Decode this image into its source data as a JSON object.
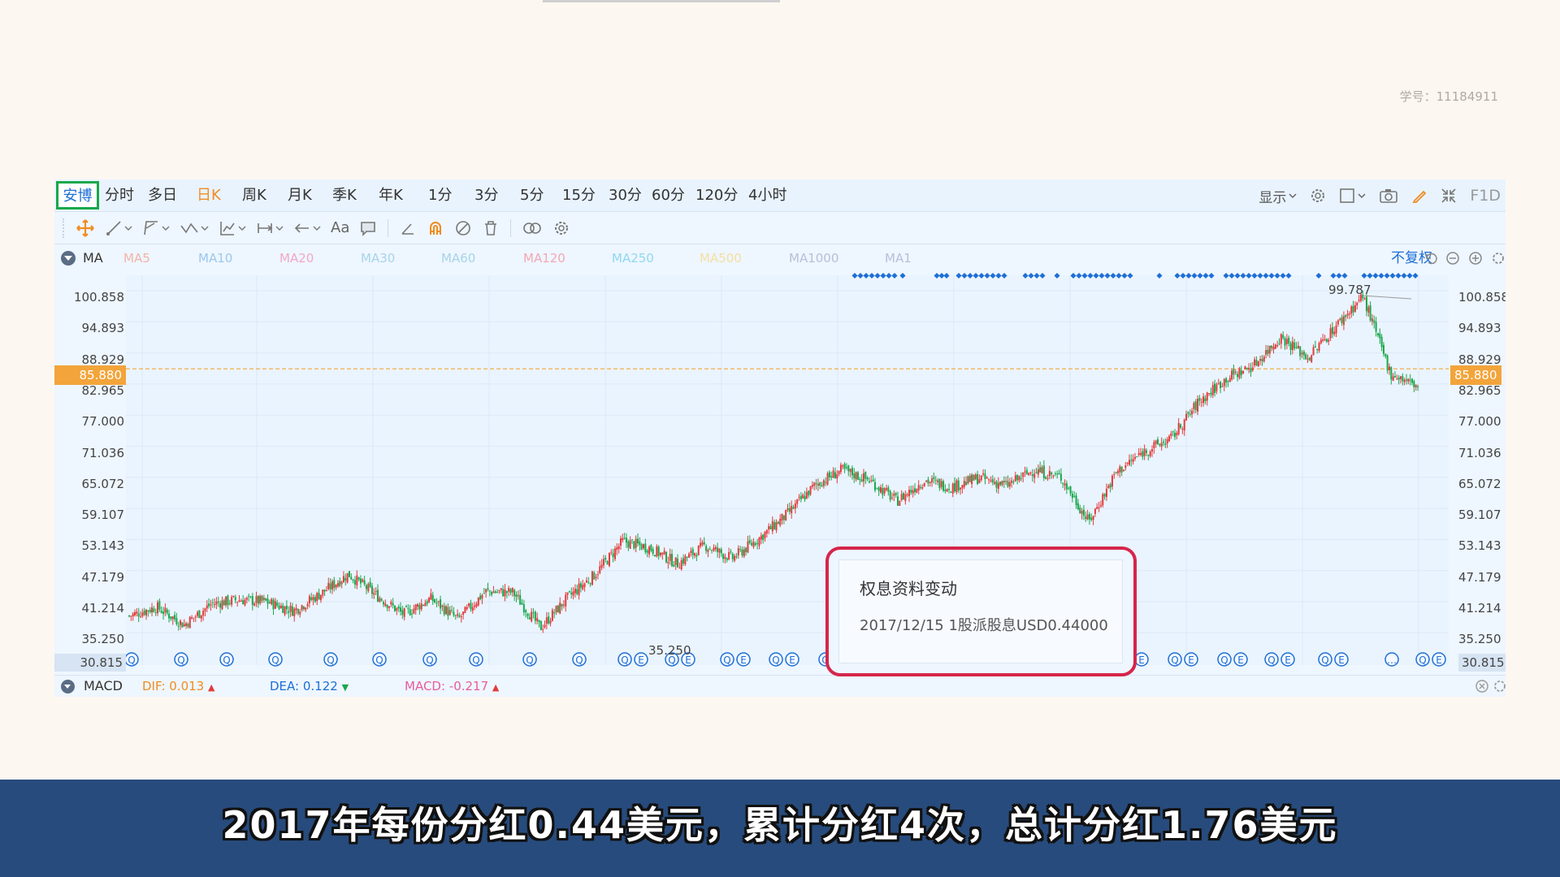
{
  "student_id": "学号：11184911",
  "stock_tab": "安博",
  "periods": [
    "分时",
    "多日",
    "日K",
    "周K",
    "月K",
    "季K",
    "年K",
    "1分",
    "3分",
    "5分",
    "15分",
    "30分",
    "60分",
    "120分",
    "4小时"
  ],
  "active_period": "日K",
  "right_tools": {
    "display": "显示",
    "fid": "F1D"
  },
  "draw_tools": {
    "text_tool": "Aa"
  },
  "ma": {
    "title": "MA",
    "items": [
      {
        "label": "MA5",
        "color": "#f3b3a7"
      },
      {
        "label": "MA10",
        "color": "#9cc7ea"
      },
      {
        "label": "MA20",
        "color": "#f2a8c4"
      },
      {
        "label": "MA30",
        "color": "#a7d4e8"
      },
      {
        "label": "MA60",
        "color": "#a7d4e8"
      },
      {
        "label": "MA120",
        "color": "#f2a8b4"
      },
      {
        "label": "MA250",
        "color": "#8fd8f0"
      },
      {
        "label": "MA500",
        "color": "#f4dfa0"
      },
      {
        "label": "MA1000",
        "color": "#b8bfd8"
      },
      {
        "label": "MA1",
        "color": "#b8bfd8"
      }
    ],
    "adjust": "不复权"
  },
  "price_axis": [
    "100.858",
    "94.893",
    "88.929",
    "82.965",
    "77.000",
    "71.036",
    "65.072",
    "59.107",
    "53.143",
    "47.179",
    "41.214",
    "35.250",
    "30.815"
  ],
  "current_price": "85.880",
  "annotations": {
    "high": "99.787",
    "low": "35.250"
  },
  "macd": {
    "title": "MACD",
    "dif": "DIF: 0.013",
    "dea": "DEA: 0.122",
    "macd": "MACD: -0.217",
    "colors": {
      "dif": "#f08c22",
      "dea": "#1d6fd6",
      "macd": "#e85c9a"
    }
  },
  "popup": {
    "title": "权息资料变动",
    "body": "2017/12/15  1股派股息USD0.44000"
  },
  "subtitle": "2017年每份分红0.44美元，累计分红4次，总计分红1.76美元",
  "chart_data": {
    "type": "candlestick",
    "y_ticks": [
      100.858,
      94.893,
      88.929,
      82.965,
      77.0,
      71.036,
      65.072,
      59.107,
      53.143,
      47.179,
      41.214,
      35.25,
      30.815
    ],
    "current_price": 85.88,
    "high_marker": 99.787,
    "low_marker": 35.25,
    "trend_close_path": [
      38.5,
      40.2,
      36.8,
      40.8,
      41.6,
      41.2,
      39.5,
      42.8,
      46.5,
      42.5,
      38.8,
      41.8,
      37.8,
      43.2,
      43.0,
      36.2,
      42.0,
      46.5,
      52.8,
      51.5,
      48.5,
      52.0,
      49.5,
      53.5,
      58.0,
      63.5,
      66.5,
      64.5,
      60.5,
      64.5,
      63.2,
      65.0,
      63.5,
      66.5,
      65.0,
      56.5,
      66.0,
      70.0,
      72.5,
      79.5,
      84.0,
      86.5,
      92.0,
      88.0,
      94.0,
      99.8,
      85.0,
      82.5
    ]
  }
}
